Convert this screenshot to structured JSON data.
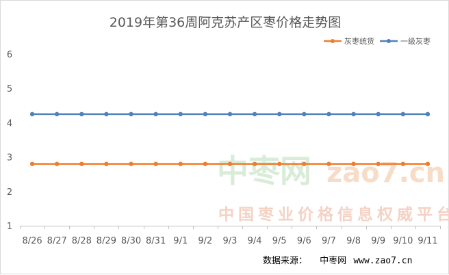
{
  "chart_data": {
    "type": "line",
    "title": "2019年第36周阿克苏产区枣价格走势图",
    "categories": [
      "8/26",
      "8/27",
      "8/28",
      "8/29",
      "8/30",
      "8/31",
      "9/1",
      "9/2",
      "9/3",
      "9/4",
      "9/5",
      "9/6",
      "9/7",
      "9/8",
      "9/9",
      "9/10",
      "9/11"
    ],
    "series": [
      {
        "name": "灰枣统货",
        "color": "#ed7d31",
        "values": [
          2.8,
          2.8,
          2.8,
          2.8,
          2.8,
          2.8,
          2.8,
          2.8,
          2.8,
          2.8,
          2.8,
          2.8,
          2.8,
          2.8,
          2.8,
          2.8,
          2.8
        ]
      },
      {
        "name": "一级灰枣",
        "color": "#4f81bd",
        "values": [
          4.25,
          4.25,
          4.25,
          4.25,
          4.25,
          4.25,
          4.25,
          4.25,
          4.25,
          4.25,
          4.25,
          4.25,
          4.25,
          4.25,
          4.25,
          4.25,
          4.25
        ]
      }
    ],
    "ylim": [
      1,
      6
    ],
    "yticks": [
      1,
      2,
      3,
      4,
      5,
      6
    ],
    "grid": false,
    "legend_position": "top-right"
  },
  "watermark": {
    "brand": "中枣网",
    "url": "zao7.cn",
    "slogan": "中国枣业价格信息权威平台"
  },
  "source": {
    "label": "数据来源：",
    "site_name": "中枣网",
    "site_url": "www.zao7.cn"
  }
}
